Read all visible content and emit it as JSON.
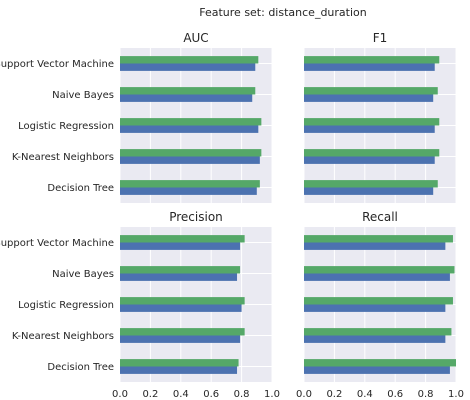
{
  "chart_data": {
    "type": "bar",
    "orientation": "horizontal",
    "suptitle": "Feature set: distance_duration",
    "categories": [
      "Support Vector Machine",
      "Naive Bayes",
      "Logistic Regression",
      "K-Nearest Neighbors",
      "Decision Tree"
    ],
    "xlim": [
      0,
      1
    ],
    "xticks": [
      "0.0",
      "0.2",
      "0.4",
      "0.6",
      "0.8",
      "1.0"
    ],
    "grid": true,
    "legend": "none",
    "series_colors": [
      "#4c72b0",
      "#55a868"
    ],
    "panels": [
      {
        "title": "AUC",
        "series": [
          {
            "color": "#4c72b0",
            "values": [
              0.89,
              0.87,
              0.91,
              0.92,
              0.9
            ]
          },
          {
            "color": "#55a868",
            "values": [
              0.91,
              0.89,
              0.93,
              0.93,
              0.92
            ]
          }
        ]
      },
      {
        "title": "F1",
        "series": [
          {
            "color": "#4c72b0",
            "values": [
              0.86,
              0.85,
              0.86,
              0.86,
              0.85
            ]
          },
          {
            "color": "#55a868",
            "values": [
              0.89,
              0.88,
              0.89,
              0.89,
              0.88
            ]
          }
        ]
      },
      {
        "title": "Precision",
        "series": [
          {
            "color": "#4c72b0",
            "values": [
              0.79,
              0.77,
              0.8,
              0.79,
              0.77
            ]
          },
          {
            "color": "#55a868",
            "values": [
              0.82,
              0.79,
              0.82,
              0.82,
              0.78
            ]
          }
        ]
      },
      {
        "title": "Recall",
        "series": [
          {
            "color": "#4c72b0",
            "values": [
              0.93,
              0.96,
              0.93,
              0.93,
              0.96
            ]
          },
          {
            "color": "#55a868",
            "values": [
              0.98,
              0.99,
              0.98,
              0.97,
              1.0
            ]
          }
        ]
      }
    ]
  }
}
